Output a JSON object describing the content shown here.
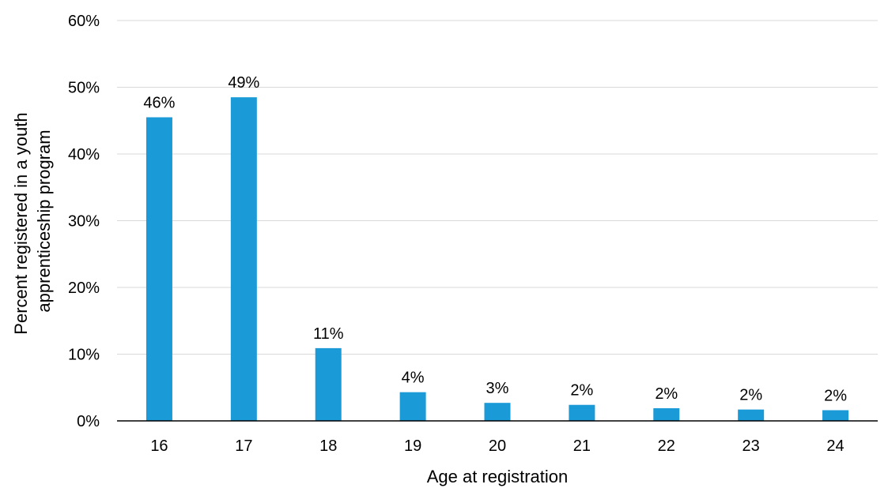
{
  "chart_data": {
    "type": "bar",
    "categories": [
      "16",
      "17",
      "18",
      "19",
      "20",
      "21",
      "22",
      "23",
      "24"
    ],
    "values": [
      45.5,
      48.5,
      10.9,
      4.3,
      2.7,
      2.4,
      1.9,
      1.7,
      1.6
    ],
    "data_labels": [
      "46%",
      "49%",
      "11%",
      "4%",
      "3%",
      "2%",
      "2%",
      "2%",
      "2%"
    ],
    "ylim": [
      0,
      60
    ],
    "yticks": [
      0,
      10,
      20,
      30,
      40,
      50,
      60
    ],
    "ytick_labels": [
      "0%",
      "10%",
      "20%",
      "30%",
      "40%",
      "50%",
      "60%"
    ],
    "xlabel": "Age at registration",
    "ylabel_lines": [
      "Percent registered in a youth",
      "apprenticeship program"
    ],
    "bar_color": "#1a9ad6",
    "grid": true,
    "legend": "none"
  }
}
